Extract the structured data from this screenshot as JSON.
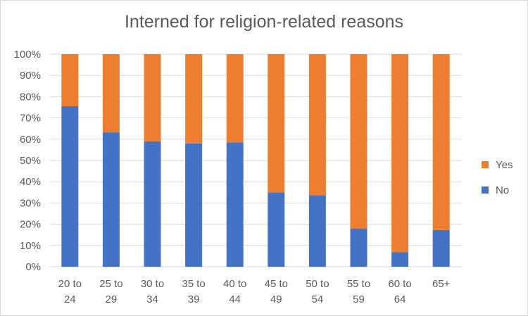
{
  "chart_data": {
    "type": "bar",
    "stacked": true,
    "title": "Interned for religion-related reasons",
    "xlabel": "",
    "ylabel": "",
    "categories": [
      [
        "20 to",
        "24"
      ],
      [
        "25 to",
        "29"
      ],
      [
        "30 to",
        "34"
      ],
      [
        "35 to",
        "39"
      ],
      [
        "40 to",
        "44"
      ],
      [
        "45 to",
        "49"
      ],
      [
        "50 to",
        "54"
      ],
      [
        "55 to",
        "59"
      ],
      [
        "60 to",
        "64"
      ],
      [
        "65+"
      ]
    ],
    "series": [
      {
        "name": "No",
        "color": "#4472c4",
        "values": [
          75.5,
          63.2,
          59.0,
          58.0,
          58.5,
          35.0,
          33.7,
          18.0,
          6.8,
          17.3
        ]
      },
      {
        "name": "Yes",
        "color": "#ed7d31",
        "values": [
          24.5,
          36.8,
          41.0,
          42.0,
          41.5,
          65.0,
          66.3,
          82.0,
          93.2,
          82.7
        ]
      }
    ],
    "ylim": [
      0,
      100
    ],
    "yticks": [
      "0%",
      "10%",
      "20%",
      "30%",
      "40%",
      "50%",
      "60%",
      "70%",
      "80%",
      "90%",
      "100%"
    ],
    "legend": {
      "position": "right",
      "entries": [
        "Yes",
        "No"
      ]
    },
    "grid": true
  }
}
